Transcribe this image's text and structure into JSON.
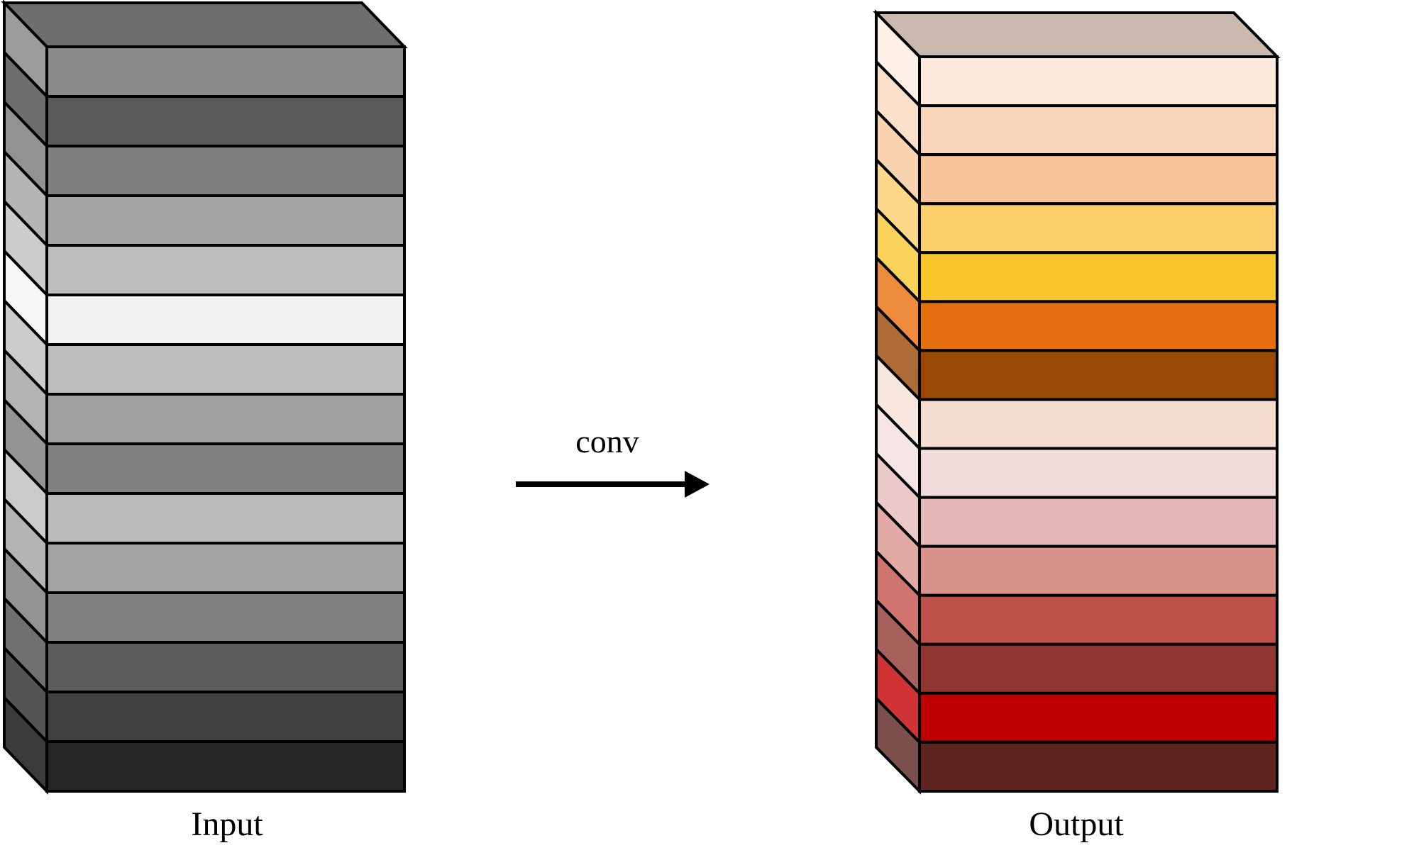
{
  "diagram": {
    "input": {
      "label": "Input",
      "top_color": "#6e6e6e",
      "layers": [
        {
          "face": "#8a8a8a",
          "side": "#9c9c9c"
        },
        {
          "face": "#5a5a5a",
          "side": "#6e6e6e"
        },
        {
          "face": "#7e7e7e",
          "side": "#929292"
        },
        {
          "face": "#a4a4a4",
          "side": "#b5b5b5"
        },
        {
          "face": "#bebebe",
          "side": "#cdcdcd"
        },
        {
          "face": "#f2f2f2",
          "side": "#f7f7f7"
        },
        {
          "face": "#bdbdbd",
          "side": "#cccccc"
        },
        {
          "face": "#a1a1a1",
          "side": "#b3b3b3"
        },
        {
          "face": "#808080",
          "side": "#949494"
        },
        {
          "face": "#bcbcbc",
          "side": "#cbcbcb"
        },
        {
          "face": "#a3a3a3",
          "side": "#b4b4b4"
        },
        {
          "face": "#7f7f7f",
          "side": "#939393"
        },
        {
          "face": "#5c5c5c",
          "side": "#707070"
        },
        {
          "face": "#404040",
          "side": "#545454"
        },
        {
          "face": "#252525",
          "side": "#3b3b3b"
        }
      ]
    },
    "operation": {
      "label": "conv"
    },
    "output": {
      "label": "Output",
      "top_color": "#c9b9ae",
      "layers": [
        {
          "face": "#fdeadd",
          "side": "#fef1e8"
        },
        {
          "face": "#f9d5bb",
          "side": "#fbe0cc"
        },
        {
          "face": "#f8c59a",
          "side": "#fad3b0"
        },
        {
          "face": "#fdce6c",
          "side": "#fed88a"
        },
        {
          "face": "#f8c52c",
          "side": "#fbd25a"
        },
        {
          "face": "#e6700f",
          "side": "#ed8c3c"
        },
        {
          "face": "#9a4905",
          "side": "#ad6b35"
        },
        {
          "face": "#f4ddd0",
          "side": "#f8e7de"
        },
        {
          "face": "#f0dcdb",
          "side": "#f5e6e5"
        },
        {
          "face": "#e3b8b6",
          "side": "#eac9c8"
        },
        {
          "face": "#d9938c",
          "side": "#e2aaa4"
        },
        {
          "face": "#bf514b",
          "side": "#d07470"
        },
        {
          "face": "#913631",
          "side": "#a8605c"
        },
        {
          "face": "#bd0000",
          "side": "#cf3333"
        },
        {
          "face": "#5f2420",
          "side": "#7d4f4c"
        }
      ]
    }
  }
}
